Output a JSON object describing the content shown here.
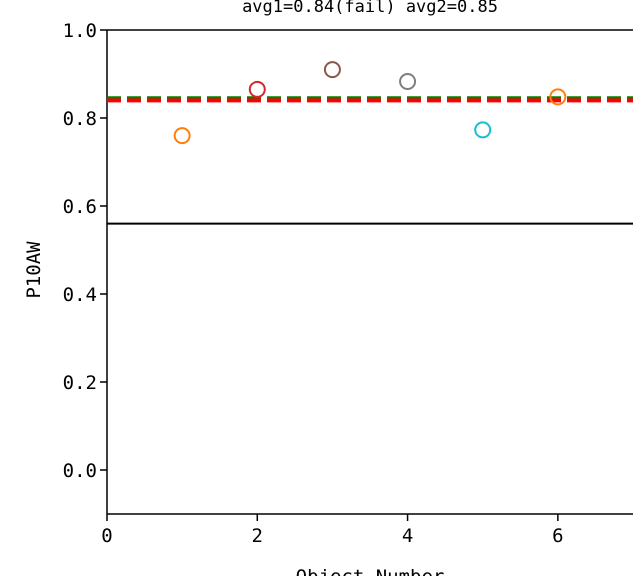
{
  "chart_data": {
    "type": "scatter",
    "title": "avg1=0.84(fail) avg2=0.85",
    "xlabel": "Object Number",
    "ylabel": "P10AW",
    "xlim": [
      0,
      7
    ],
    "ylim": [
      -0.1,
      1.0
    ],
    "xticks": [
      {
        "value": 0,
        "label": "0"
      },
      {
        "value": 2,
        "label": "2"
      },
      {
        "value": 4,
        "label": "4"
      },
      {
        "value": 6,
        "label": "6"
      }
    ],
    "yticks": [
      {
        "value": 0.0,
        "label": "0.0"
      },
      {
        "value": 0.2,
        "label": "0.2"
      },
      {
        "value": 0.4,
        "label": "0.4"
      },
      {
        "value": 0.6,
        "label": "0.6"
      },
      {
        "value": 0.8,
        "label": "0.8"
      },
      {
        "value": 1.0,
        "label": "1.0"
      }
    ],
    "grid": false,
    "marker": "hollow-circle",
    "points": [
      {
        "x": 1,
        "y": 0.76,
        "color": "#ff7f0e"
      },
      {
        "x": 2,
        "y": 0.865,
        "color": "#d62728"
      },
      {
        "x": 3,
        "y": 0.91,
        "color": "#8c564b"
      },
      {
        "x": 4,
        "y": 0.883,
        "color": "#7f7f7f"
      },
      {
        "x": 5,
        "y": 0.773,
        "color": "#17becf"
      },
      {
        "x": 6,
        "y": 0.848,
        "color": "#ff7f0e"
      }
    ],
    "reference_lines": [
      {
        "y": 0.845,
        "color": "#008000",
        "style": "dashed"
      },
      {
        "y": 0.84,
        "color": "#ff0000",
        "style": "dashed"
      }
    ],
    "threshold_line": {
      "y": 0.56,
      "color": "#000000",
      "style": "solid"
    }
  }
}
